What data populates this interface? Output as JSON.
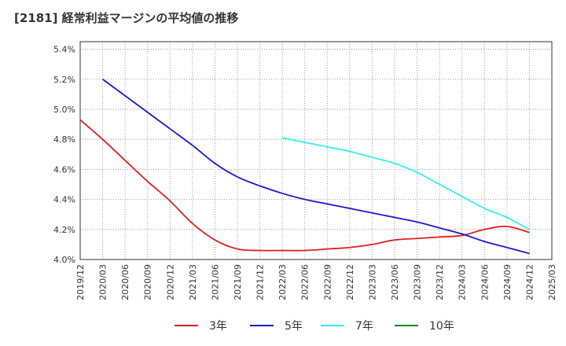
{
  "chart_data": {
    "type": "line",
    "title": "[2181]  経常利益マージンの平均値の推移",
    "xlabel": "",
    "ylabel": "",
    "x": [
      "2019/12",
      "2020/03",
      "2020/06",
      "2020/09",
      "2020/12",
      "2021/03",
      "2021/06",
      "2021/09",
      "2021/12",
      "2022/03",
      "2022/06",
      "2022/09",
      "2022/12",
      "2023/03",
      "2023/06",
      "2023/09",
      "2023/12",
      "2024/03",
      "2024/06",
      "2024/09",
      "2024/12"
    ],
    "x_ticks": [
      "2019/12",
      "2020/03",
      "2020/06",
      "2020/09",
      "2020/12",
      "2021/03",
      "2021/06",
      "2021/09",
      "2021/12",
      "2022/03",
      "2022/06",
      "2022/09",
      "2022/12",
      "2023/03",
      "2023/06",
      "2023/09",
      "2023/12",
      "2024/03",
      "2024/06",
      "2024/09",
      "2024/12",
      "2025/03"
    ],
    "y_ticks": [
      "4.0%",
      "4.2%",
      "4.4%",
      "4.6%",
      "4.8%",
      "5.0%",
      "5.2%",
      "5.4%"
    ],
    "ylim": [
      4.0,
      5.45
    ],
    "grid": true,
    "legend_position": "bottom",
    "series": [
      {
        "name": "3年",
        "color": "#dd1f1f",
        "values": [
          4.93,
          4.8,
          4.66,
          4.52,
          4.39,
          4.24,
          4.13,
          4.07,
          4.06,
          4.06,
          4.06,
          4.07,
          4.08,
          4.1,
          4.13,
          4.14,
          4.15,
          4.16,
          4.2,
          4.22,
          4.18
        ]
      },
      {
        "name": "5年",
        "color": "#1a1ac7",
        "values": [
          null,
          5.2,
          5.09,
          4.98,
          4.87,
          4.76,
          4.64,
          4.55,
          4.49,
          4.44,
          4.4,
          4.37,
          4.34,
          4.31,
          4.28,
          4.25,
          4.21,
          4.17,
          4.12,
          4.08,
          4.04
        ]
      },
      {
        "name": "7年",
        "color": "#33eeee",
        "values": [
          null,
          null,
          null,
          null,
          null,
          null,
          null,
          null,
          null,
          4.81,
          4.78,
          4.75,
          4.72,
          4.68,
          4.64,
          4.58,
          4.5,
          4.42,
          4.34,
          4.28,
          4.2
        ]
      },
      {
        "name": "10年",
        "color": "#1b8a1b",
        "values": [
          null,
          null,
          null,
          null,
          null,
          null,
          null,
          null,
          null,
          null,
          null,
          null,
          null,
          null,
          null,
          null,
          null,
          null,
          null,
          null,
          null
        ]
      }
    ]
  }
}
